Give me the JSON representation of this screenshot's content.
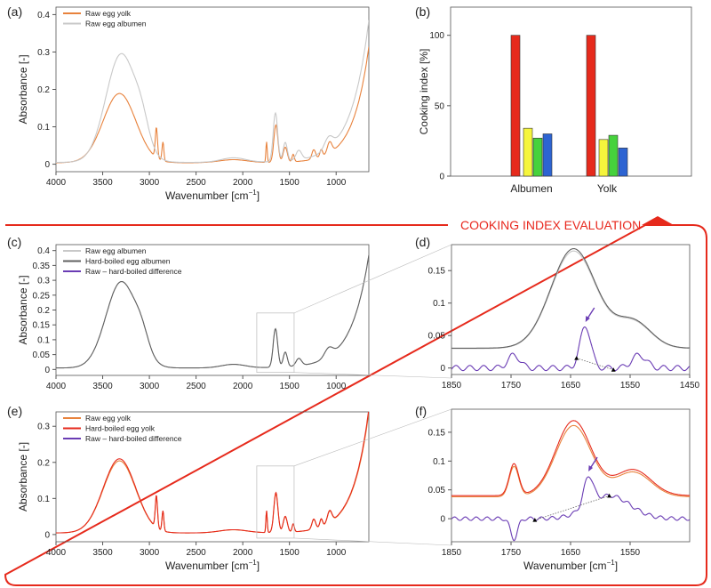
{
  "colors": {
    "yolk_raw": "#e8823c",
    "yolk_hard": "#e62a1c",
    "albumen_raw": "#c8c8c8",
    "albumen_hard": "#606060",
    "difference": "#6a3cb4",
    "frame": "#e62a1c",
    "bar_red": "#e62a1c",
    "bar_yellow": "#f5f53c",
    "bar_green": "#46d23c",
    "bar_blue": "#2d64d2"
  },
  "banner": "COOKING INDEX EVALUATION",
  "axes": {
    "wavenumber": "Wavenumber [cm",
    "wavenumber_sup": "−1",
    "wavenumber_end": "]",
    "absorbance": "Absorbance [-]",
    "cooking_index": "Cooking index [%]"
  },
  "chart_data": [
    {
      "panel": "(a)",
      "type": "line",
      "xlim": [
        4000,
        650
      ],
      "ylim": [
        -0.02,
        0.42
      ],
      "xticks": [
        4000,
        3500,
        3000,
        2500,
        2000,
        1500,
        1000
      ],
      "yticks": [
        0,
        0.1,
        0.2,
        0.3,
        0.4
      ],
      "ylabel": "Absorbance [-]",
      "xlabel": "Wavenumber [cm−1]",
      "legend": "top-left",
      "series": [
        {
          "name": "Raw egg yolk",
          "color": "yolk_raw",
          "profile": "yolk",
          "scale": 1.0
        },
        {
          "name": "Raw egg albumen",
          "color": "albumen_raw",
          "profile": "albumen",
          "scale": 1.0
        }
      ]
    },
    {
      "panel": "(b)",
      "type": "bar",
      "categories": [
        "Albumen",
        "Yolk"
      ],
      "ylim": [
        0,
        120
      ],
      "yticks": [
        0,
        50,
        100
      ],
      "ylabel": "Cooking index [%]",
      "series": [
        {
          "color": "bar_red",
          "values": [
            100,
            100
          ]
        },
        {
          "color": "bar_yellow",
          "values": [
            34,
            26
          ]
        },
        {
          "color": "bar_green",
          "values": [
            27,
            29
          ]
        },
        {
          "color": "bar_blue",
          "values": [
            30,
            20
          ]
        }
      ]
    },
    {
      "panel": "(c)",
      "type": "line",
      "xlim": [
        4000,
        650
      ],
      "ylim": [
        -0.02,
        0.42
      ],
      "xticks": [
        4000,
        3500,
        3000,
        2500,
        2000,
        1500,
        1000
      ],
      "yticks": [
        0,
        0.05,
        0.1,
        0.15,
        0.2,
        0.25,
        0.3,
        0.35,
        0.4
      ],
      "ylabel": "Absorbance [-]",
      "legend": "top-left",
      "series": [
        {
          "name": "Raw egg albumen",
          "color": "albumen_raw",
          "profile": "albumen",
          "scale": 1.0
        },
        {
          "name": "Hard-boiled egg albumen",
          "color": "albumen_hard",
          "profile": "albumen",
          "scale": 1.0
        },
        {
          "name": "Raw – hard-boiled difference",
          "color": "difference",
          "legend_only": true
        }
      ]
    },
    {
      "panel": "(d)",
      "type": "line",
      "xlim": [
        1850,
        1450
      ],
      "ylim": [
        -0.01,
        0.19
      ],
      "xticks": [
        1850,
        1750,
        1650,
        1550,
        1450
      ],
      "yticks": [
        0,
        0.05,
        0.1,
        0.15
      ],
      "series": [
        {
          "name": "Raw egg albumen",
          "color": "albumen_raw",
          "profile": "zoomA",
          "scale": 1.0
        },
        {
          "name": "Hard-boiled egg albumen",
          "color": "albumen_hard",
          "profile": "zoomA",
          "scale": 1.02
        },
        {
          "name": "Raw – hard-boiled difference",
          "color": "difference",
          "profile": "diffA",
          "scale": 1.0
        }
      ],
      "baseline_points": [
        1640,
        1578
      ],
      "arrow_at": 1625
    },
    {
      "panel": "(e)",
      "type": "line",
      "xlim": [
        4000,
        650
      ],
      "ylim": [
        -0.02,
        0.34
      ],
      "xticks": [
        4000,
        3500,
        3000,
        2500,
        2000,
        1500,
        1000
      ],
      "yticks": [
        0,
        0.1,
        0.2,
        0.3
      ],
      "ylabel": "Absorbance [-]",
      "xlabel": "Wavenumber [cm−1]",
      "legend": "top-left",
      "series": [
        {
          "name": "Raw egg yolk",
          "color": "yolk_raw",
          "profile": "yolk",
          "scale": 1.08
        },
        {
          "name": "Hard-boiled egg yolk",
          "color": "yolk_hard",
          "profile": "yolk",
          "scale": 1.11
        },
        {
          "name": "Raw – hard-boiled difference",
          "color": "difference",
          "legend_only": true
        }
      ]
    },
    {
      "panel": "(f)",
      "type": "line",
      "xlim": [
        1850,
        1450
      ],
      "ylim": [
        -0.04,
        0.19
      ],
      "xticks": [
        1850,
        1750,
        1650,
        1550
      ],
      "yticks": [
        0,
        0.05,
        0.1,
        0.15
      ],
      "xlabel": "Wavenumber [cm−1]",
      "series": [
        {
          "name": "Raw egg yolk",
          "color": "yolk_raw",
          "profile": "zoomY",
          "scale": 0.95
        },
        {
          "name": "Hard-boiled egg yolk",
          "color": "yolk_hard",
          "profile": "zoomY",
          "scale": 1.0
        },
        {
          "name": "Raw – hard-boiled difference",
          "color": "difference",
          "profile": "diffY",
          "scale": 1.0
        }
      ],
      "baseline_points": [
        1710,
        1585
      ],
      "arrow_at": 1620
    }
  ]
}
